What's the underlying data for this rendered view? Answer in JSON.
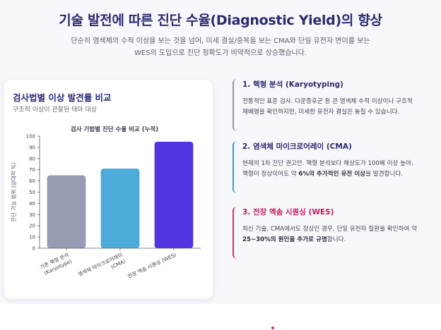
{
  "header": {
    "title": "기술 발전에 따른 진단 수율(Diagnostic Yield)의 향상",
    "subtitle_line1": "단순히 염색체의 수적 이상을 보는 것을 넘어, 미세 결실/중복을 보는 CMA와 단일 유전자 변이를 보는",
    "subtitle_line2": "WES의 도입으로 진단 정확도가 비약적으로 상승했습니다."
  },
  "card": {
    "title": "검사법별 이상 발견률 비교",
    "subtitle": "구조적 이상이 관찰된 태아 대상"
  },
  "chart_data": {
    "type": "bar",
    "title": "검사 기법별 진단 수율 비교 (누적)",
    "ylabel": "진단 가능 범위 (상대적 %)",
    "xlabel": "",
    "ylim": [
      0,
      100
    ],
    "yticks": [
      0,
      10,
      20,
      30,
      40,
      50,
      60,
      70,
      80,
      90,
      100
    ],
    "grid": false,
    "categories": [
      [
        "기존 핵형 분석",
        "(Karyotype)"
      ],
      [
        "염색체 마이크로어레이",
        "(CMA)"
      ],
      [
        "전장 엑솜 시퀀싱 (WES)"
      ]
    ],
    "values": [
      65,
      71,
      95
    ],
    "colors": [
      "#959cb4",
      "#4dabd9",
      "#5433e0"
    ]
  },
  "steps": [
    {
      "title": "1. 핵형 분석 (Karyotyping)",
      "line1": "전통적인 표준 검사. 다운증후군 등 큰 염색체 수적 이상이나 구조적",
      "line2": "재배열을 확인하지만, 미세한 유전자 결실은 놓칠 수 있습니다."
    },
    {
      "title": "2. 염색체 마이크로어레이 (CMA)",
      "line1": "현재의 1차 진단 권고안. 핵형 분석보다 해상도가 100배 이상 높아,",
      "line2_pre": "핵형이 정상이어도 약 ",
      "line2_bold": "6%의 추가적인 유전 이상",
      "line2_post": "을 발견합니다."
    },
    {
      "title": "3. 전장 엑솜 시퀀싱 (WES)",
      "line1": "최신 기술. CMA에서도 정상인 경우, 단일 유전자 질환을 확인하여 약",
      "line2_bold": "25~30%의 원인을 추가로 규명",
      "line2_post": "합니다."
    }
  ]
}
